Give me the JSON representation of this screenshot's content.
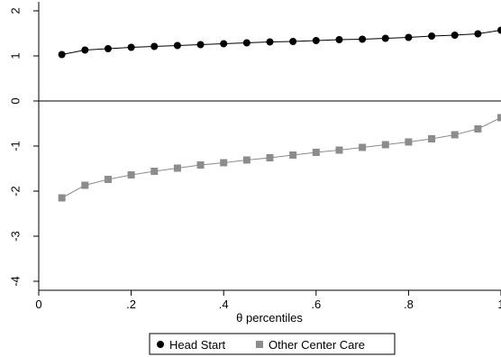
{
  "chart_data": {
    "type": "line",
    "title": "",
    "xlabel": "θ percentiles",
    "ylabel": "",
    "xlim": [
      0,
      1
    ],
    "ylim": [
      -4.2,
      2.2
    ],
    "x_ticks": [
      0,
      0.2,
      0.4,
      0.6,
      0.8,
      1
    ],
    "x_tick_labels": [
      "0",
      ".2",
      ".4",
      ".6",
      ".8",
      "1"
    ],
    "y_ticks": [
      -4,
      -3,
      -2,
      -1,
      0,
      1,
      2
    ],
    "y_tick_labels": [
      "-4",
      "-3",
      "-2",
      "-1",
      "0",
      "1",
      "2"
    ],
    "reference_line_y": 0,
    "grid": false,
    "legend_position": "bottom",
    "x": [
      0.05,
      0.1,
      0.15,
      0.2,
      0.25,
      0.3,
      0.35,
      0.4,
      0.45,
      0.5,
      0.55,
      0.6,
      0.65,
      0.7,
      0.75,
      0.8,
      0.85,
      0.9,
      0.95,
      1.0
    ],
    "series": [
      {
        "name": "Head Start",
        "color": "#000000",
        "marker": "circle",
        "values": [
          1.03,
          1.13,
          1.16,
          1.19,
          1.21,
          1.23,
          1.25,
          1.27,
          1.29,
          1.31,
          1.32,
          1.34,
          1.36,
          1.37,
          1.39,
          1.41,
          1.44,
          1.46,
          1.49,
          1.57
        ]
      },
      {
        "name": "Other Center Care",
        "color": "#8c8c8c",
        "marker": "square",
        "values": [
          -2.15,
          -1.87,
          -1.74,
          -1.64,
          -1.56,
          -1.49,
          -1.42,
          -1.37,
          -1.31,
          -1.26,
          -1.2,
          -1.14,
          -1.09,
          -1.03,
          -0.97,
          -0.91,
          -0.84,
          -0.75,
          -0.62,
          -0.37
        ]
      }
    ]
  }
}
